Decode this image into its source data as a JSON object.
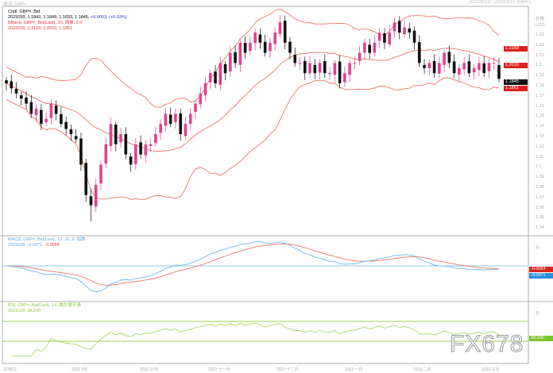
{
  "header": {
    "title": "概览 GBP=",
    "range": "2022/8/23 - 2023/3/10 (GMT)"
  },
  "legend": {
    "main": "Cndl, GBP=, Bid",
    "ohlc": "2023/3/9, 1.1843, 1.1849, 1.1833, 1.1845,",
    "change": "+0.0003, (+0.03%)",
    "bband": "BBand, GBP=, Bid(Last), 20, 简单, 2.0",
    "bband_vals": "2023/3/9, 1.2169, 1.2010, 1.1851",
    "macd": "MACD, GBP=, Bid(Last), 12, 26, 9, 指数",
    "macd_vals_a": "2023/3/9, -0.0071,",
    "macd_vals_b": "-0.0054",
    "rsi": "RSI, GBP=, Bid(Last), 14, 威尔德平滑",
    "rsi_vals": "2023/3/9, 38.240"
  },
  "axis": {
    "unit": "价格",
    "currency": "USD",
    "ticks": [
      "1.23",
      "1.22",
      "1.21",
      "1.2",
      "1.19",
      "1.18",
      "1.17",
      "1.16",
      "1.15",
      "1.14",
      "1.13",
      "1.12",
      "1.11",
      "1.1",
      "1.09",
      "1.08",
      "1.07",
      "1.06",
      "1.05",
      "1.04"
    ],
    "price_tags": [
      "1.2169",
      "1.2010",
      "1.1845",
      "1.1851"
    ],
    "macd_tags": [
      "-0.0054",
      "-0.0071"
    ],
    "rsi_tag": "38.240",
    "macd_unit": "价",
    "rsi_unit": "价"
  },
  "xaxis": {
    "labels": [
      "22/8/23",
      "2022 9月",
      "2022 10月",
      "2022 十一月",
      "2022 十二月",
      "2023 一月",
      "2023 二月",
      "2023 三月"
    ]
  },
  "watermark": "FX678",
  "colors": {
    "up": "#e0428f",
    "down": "#111111",
    "band": "#e8756a",
    "macd": "#6ab8ee",
    "signal": "#e8756a",
    "rsi": "#9bd24a"
  },
  "chart_data": {
    "type": "candlestick",
    "title": "GBP= Daily",
    "ylim": [
      1.04,
      1.24
    ],
    "closes": [
      1.18,
      1.175,
      1.17,
      1.165,
      1.16,
      1.15,
      1.155,
      1.14,
      1.145,
      1.16,
      1.15,
      1.14,
      1.135,
      1.13,
      1.125,
      1.1,
      1.07,
      1.06,
      1.08,
      1.1,
      1.12,
      1.14,
      1.12,
      1.13,
      1.11,
      1.1,
      1.12,
      1.11,
      1.12,
      1.12,
      1.13,
      1.14,
      1.15,
      1.14,
      1.15,
      1.13,
      1.14,
      1.15,
      1.16,
      1.17,
      1.18,
      1.19,
      1.18,
      1.2,
      1.19,
      1.21,
      1.2,
      1.22,
      1.21,
      1.22,
      1.23,
      1.22,
      1.21,
      1.22,
      1.23,
      1.24,
      1.22,
      1.21,
      1.2,
      1.2,
      1.19,
      1.2,
      1.19,
      1.2,
      1.19,
      1.19,
      1.2,
      1.18,
      1.19,
      1.2,
      1.2,
      1.21,
      1.22,
      1.21,
      1.22,
      1.23,
      1.22,
      1.23,
      1.24,
      1.23,
      1.235,
      1.23,
      1.22,
      1.2,
      1.195,
      1.2,
      1.19,
      1.2,
      1.21,
      1.2,
      1.19,
      1.195,
      1.2,
      1.19,
      1.195,
      1.2,
      1.19,
      1.2,
      1.2,
      1.1845
    ],
    "bollinger": {
      "period": 20,
      "stddev": 2
    },
    "macd": {
      "fast": 12,
      "slow": 26,
      "signal": 9
    },
    "rsi": {
      "period": 14,
      "levels": [
        70,
        30
      ]
    }
  }
}
